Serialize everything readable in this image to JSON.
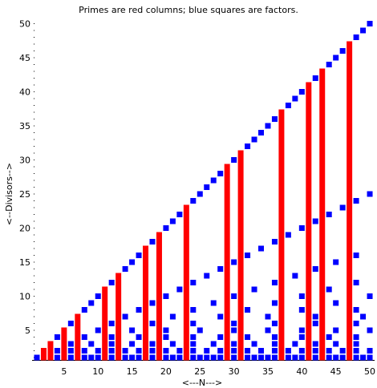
{
  "chart_data": {
    "type": "scatter",
    "title": "Primes are red columns; blue squares are factors.",
    "xlabel": "<---N--->",
    "ylabel": "<--Divisors-->",
    "xlim": [
      1,
      50
    ],
    "ylim": [
      1,
      50
    ],
    "x_ticks": [
      5,
      10,
      15,
      20,
      25,
      30,
      35,
      40,
      45,
      50
    ],
    "y_ticks": [
      5,
      10,
      15,
      20,
      25,
      30,
      35,
      40,
      45,
      50
    ],
    "primes": [
      2,
      3,
      5,
      7,
      11,
      13,
      17,
      19,
      23,
      29,
      31,
      37,
      41,
      43,
      47
    ],
    "factors": [
      [
        1
      ],
      [
        1,
        2
      ],
      [
        1,
        3
      ],
      [
        1,
        2,
        4
      ],
      [
        1,
        5
      ],
      [
        1,
        2,
        3,
        6
      ],
      [
        1,
        7
      ],
      [
        1,
        2,
        4,
        8
      ],
      [
        1,
        3,
        9
      ],
      [
        1,
        2,
        5,
        10
      ],
      [
        1,
        11
      ],
      [
        1,
        2,
        3,
        4,
        6,
        12
      ],
      [
        1,
        13
      ],
      [
        1,
        2,
        7,
        14
      ],
      [
        1,
        3,
        5,
        15
      ],
      [
        1,
        2,
        4,
        8,
        16
      ],
      [
        1,
        17
      ],
      [
        1,
        2,
        3,
        6,
        9,
        18
      ],
      [
        1,
        19
      ],
      [
        1,
        2,
        4,
        5,
        10,
        20
      ],
      [
        1,
        3,
        7,
        21
      ],
      [
        1,
        2,
        11,
        22
      ],
      [
        1,
        23
      ],
      [
        1,
        2,
        3,
        4,
        6,
        8,
        12,
        24
      ],
      [
        1,
        5,
        25
      ],
      [
        1,
        2,
        13,
        26
      ],
      [
        1,
        3,
        9,
        27
      ],
      [
        1,
        2,
        4,
        7,
        14,
        28
      ],
      [
        1,
        29
      ],
      [
        1,
        2,
        3,
        5,
        6,
        10,
        15,
        30
      ],
      [
        1,
        31
      ],
      [
        1,
        2,
        4,
        8,
        16,
        32
      ],
      [
        1,
        3,
        11,
        33
      ],
      [
        1,
        2,
        17,
        34
      ],
      [
        1,
        5,
        7,
        35
      ],
      [
        1,
        2,
        3,
        4,
        6,
        9,
        12,
        18,
        36
      ],
      [
        1,
        37
      ],
      [
        1,
        2,
        19,
        38
      ],
      [
        1,
        3,
        13,
        39
      ],
      [
        1,
        2,
        4,
        5,
        8,
        10,
        20,
        40
      ],
      [
        1,
        41
      ],
      [
        1,
        2,
        3,
        6,
        7,
        14,
        21,
        42
      ],
      [
        1,
        43
      ],
      [
        1,
        2,
        4,
        11,
        22,
        44
      ],
      [
        1,
        3,
        5,
        9,
        15,
        45
      ],
      [
        1,
        2,
        23,
        46
      ],
      [
        1,
        47
      ],
      [
        1,
        2,
        3,
        4,
        6,
        8,
        12,
        16,
        24,
        48
      ],
      [
        1,
        7,
        49
      ],
      [
        1,
        2,
        5,
        10,
        25,
        50
      ]
    ],
    "colors": {
      "prime": "#ff0000",
      "factor": "#0000ff",
      "axis": "#000000"
    }
  }
}
